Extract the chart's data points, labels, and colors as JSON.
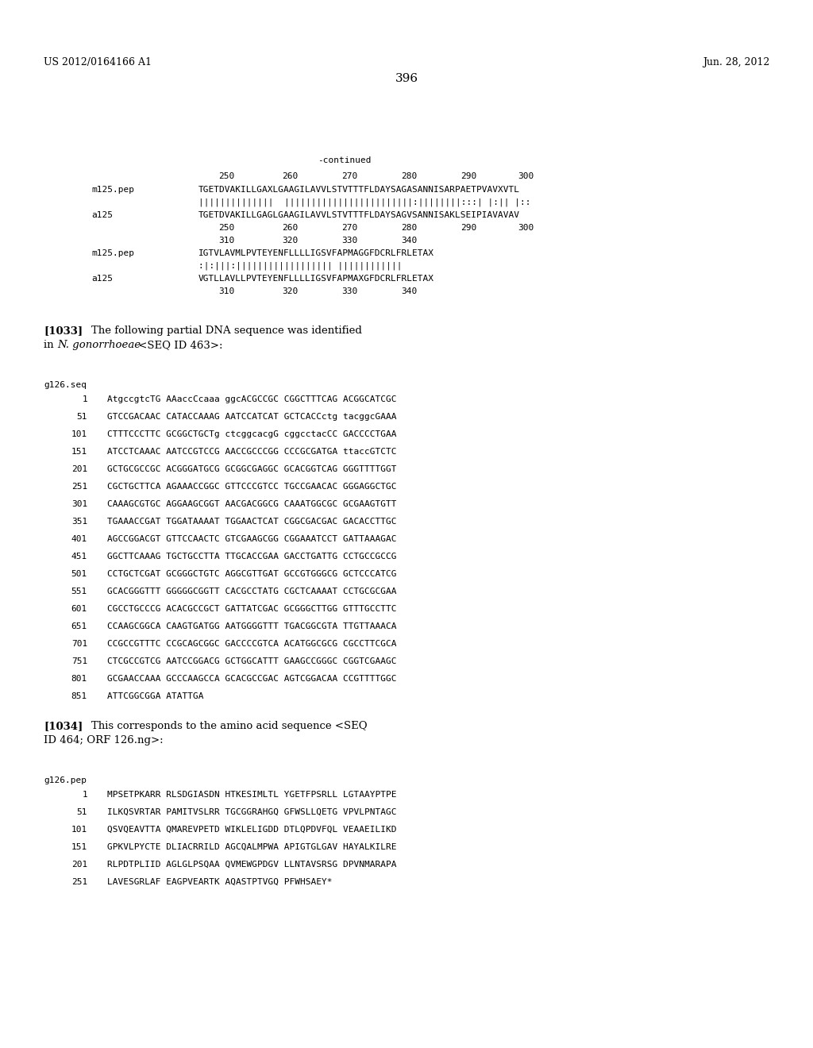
{
  "header_left": "US 2012/0164166 A1",
  "header_right": "Jun. 28, 2012",
  "page_number": "396",
  "background_color": "#ffffff",
  "text_color": "#000000",
  "continued_label": "-continued",
  "ruler1_labels": [
    "250",
    "260",
    "270",
    "280",
    "290",
    "300"
  ],
  "ruler2_labels": [
    "310",
    "320",
    "330",
    "340"
  ],
  "seq1_m125": "TGETDVAKILLGAXLGAAGILAVVLSTVTTTFLDAYSAGASANNISARPAETPVAVXVTL",
  "seq1_bars": "||||||||||||||  ||||||||||||||||||||||||:||||||||:::| |:|| |::",
  "seq1_a125": "TGETDVAKILLGAGLGAAGILAVVLSTVTTTFLDAYSAGVSANNISAKLSEIPIAVAVAV",
  "seq2_m125": "IGTVLAVMLPVTEYENFLLLLIGSVFAPMAGGFDCRLFRLETAX",
  "seq2_bars": ":|:|||:|||||||||||||||||| ||||||||||||",
  "seq2_a125": "VGTLLAVLLPVTEYENFLLLLIGSVFAPMAXGFDCRLFRLETAX",
  "para1033_line1": "The following partial DNA sequence was identified",
  "para1033_line2_prefix": "in ",
  "para1033_line2_italic": "N. gonorrhoeae",
  "para1033_line2_suffix": " <SEQ ID 463>:",
  "seq_header1": "g126.seq",
  "dna_lines": [
    [
      "1",
      "AtgccgtcTG AAaccCcaaa ggcACGCCGC CGGCTTTCAG ACGGCATCGC"
    ],
    [
      "51",
      "GTCCGACAAC CATACCAAAG AATCCATCAT GCTCACCctg tacggcGAAA"
    ],
    [
      "101",
      "CTTTCCCTTC GCGGCTGCTg ctcggcacgG cggcctacCC GACCCCTGAA"
    ],
    [
      "151",
      "ATCCTCAAAC AATCCGTCCG AACCGCCCGG CCCGCGATGA ttaccGTCTC"
    ],
    [
      "201",
      "GCTGCGCCGC ACGGGATGCG GCGGCGAGGC GCACGGTCAG GGGTTTTGGT"
    ],
    [
      "251",
      "CGCTGCTTCA AGAAACCGGC GTTCCCGTCC TGCCGAACAC GGGAGGCTGC"
    ],
    [
      "301",
      "CAAAGCGTGC AGGAAGCGGT AACGACGGCG CAAATGGCGC GCGAAGTGTT"
    ],
    [
      "351",
      "TGAAACCGAT TGGATAAAAT TGGAACTCAT CGGCGACGAC GACACCTTGC"
    ],
    [
      "401",
      "AGCCGGACGT GTTCCAACTC GTCGAAGCGG CGGAAATCCT GATTAAAGAC"
    ],
    [
      "451",
      "GGCTTCAAAG TGCTGCCTTA TTGCACCGAA GACCTGATTG CCTGCCGCCG"
    ],
    [
      "501",
      "CCTGCTCGAT GCGGGCTGTC AGGCGTTGAT GCCGTGGGCG GCTCCCATCG"
    ],
    [
      "551",
      "GCACGGGTTT GGGGGCGGTT CACGCCTATG CGCTCAAAAT CCTGCGCGAA"
    ],
    [
      "601",
      "CGCCTGCCCG ACACGCCGCT GATTATCGAC GCGGGCTTGG GTTTGCCTTC"
    ],
    [
      "651",
      "CCAAGCGGCA CAAGTGATGG AATGGGGTTT TGACGGCGTA TTGTTAAACA"
    ],
    [
      "701",
      "CCGCCGTTTC CCGCAGCGGC GACCCCGTCA ACATGGCGCG CGCCTTCGCA"
    ],
    [
      "751",
      "CTCGCCGTCG AATCCGGACG GCTGGCATTT GAAGCCGGGC CGGTCGAAGC"
    ],
    [
      "801",
      "GCGAACCAAA GCCCAAGCCA GCACGCCGAC AGTCGGACAA CCGTTTTGGC"
    ],
    [
      "851",
      "ATTCGGCGGA ATATTGA"
    ]
  ],
  "para1034_line1": "This corresponds to the amino acid sequence <SEQ",
  "para1034_line2": "ID 464; ORF 126.ng>:",
  "seq_header2": "g126.pep",
  "pep_lines": [
    [
      "1",
      "MPSETPKARR RLSDGIASDN HTKESIMLTL YGETFPSRLL LGTAAYPTPE"
    ],
    [
      "51",
      "ILKQSVRTAR PAMITVSLRR TGCGGRAHGQ GFWSLLQETG VPVLPNTAGC"
    ],
    [
      "101",
      "QSVQEAVTTA QMAREVPETD WIKLELIGDD DTLQPDVFQL VEAAEILIKD"
    ],
    [
      "151",
      "GPKVLPYCTE DLIACRRILD AGCQALMPWA APIGTGLGAV HAYALKILRE"
    ],
    [
      "201",
      "RLPDTPLIID AGLGLPSQAA QVMEWGPDGV LLNTAVSRSG DPVNMARAPA"
    ],
    [
      "251",
      "LAVESGRLAF EAGPVEARTK AQASTPTVGQ PFWHSAEY*"
    ]
  ]
}
